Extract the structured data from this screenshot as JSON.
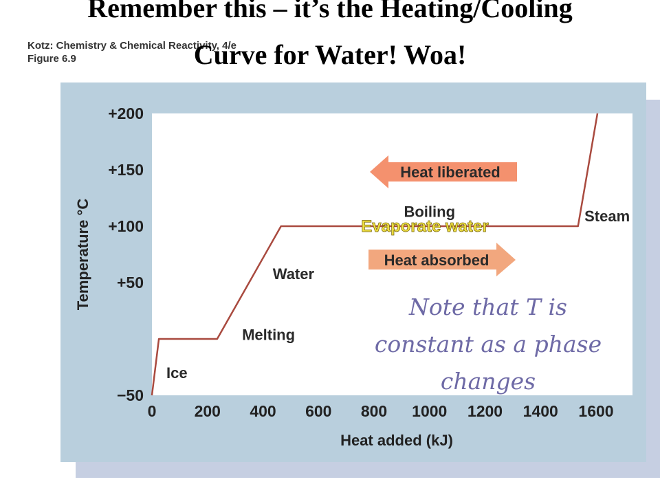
{
  "slide": {
    "title_line1": "Remember this – it’s the Heating/Cooling",
    "title_line2": "Curve for Water! Woa!"
  },
  "source": {
    "line1": "Kotz: Chemistry & Chemical Reactivity, 4/e",
    "line2": "Figure 6.9"
  },
  "colors": {
    "curve": "#a94a3f",
    "liberated_arrow": "#f4916e",
    "absorbed_arrow": "#f2a77e",
    "evaporate": "#f0e040",
    "note": "#6e6aa6",
    "panel": "#b9cfdd"
  },
  "annotations": {
    "heat_liberated": "Heat liberated",
    "heat_absorbed": "Heat absorbed",
    "evaporate": "Evaporate water",
    "note_line1": "Note that T is",
    "note_line2": "constant as a phase",
    "note_line3": "changes"
  },
  "chart_data": {
    "type": "line",
    "xlabel": "Heat added (kJ)",
    "ylabel": "Temperature °C",
    "xlim": [
      0,
      1700
    ],
    "ylim": [
      -50,
      200
    ],
    "x_ticks": [
      0,
      200,
      400,
      600,
      800,
      1000,
      1200,
      1400,
      1600
    ],
    "y_ticks": [
      {
        "value": -50,
        "label": "−50"
      },
      {
        "value": 50,
        "label": "+50"
      },
      {
        "value": 100,
        "label": "+100"
      },
      {
        "value": 150,
        "label": "+150"
      },
      {
        "value": 200,
        "label": "+200"
      }
    ],
    "grid": false,
    "series": [
      {
        "points": [
          {
            "x": 0,
            "y": -50
          },
          {
            "x": 25,
            "y": 0
          },
          {
            "x": 235,
            "y": 0
          },
          {
            "x": 465,
            "y": 100
          },
          {
            "x": 1535,
            "y": 100
          },
          {
            "x": 1605,
            "y": 200
          }
        ]
      }
    ],
    "region_labels": [
      {
        "text": "Ice",
        "x": 90,
        "y": -30
      },
      {
        "text": "Melting",
        "x": 420,
        "y": 4
      },
      {
        "text": "Water",
        "x": 510,
        "y": 58
      },
      {
        "text": "Boiling",
        "x": 1000,
        "y": 113
      },
      {
        "text": "Steam",
        "x": 1640,
        "y": 109
      }
    ]
  }
}
